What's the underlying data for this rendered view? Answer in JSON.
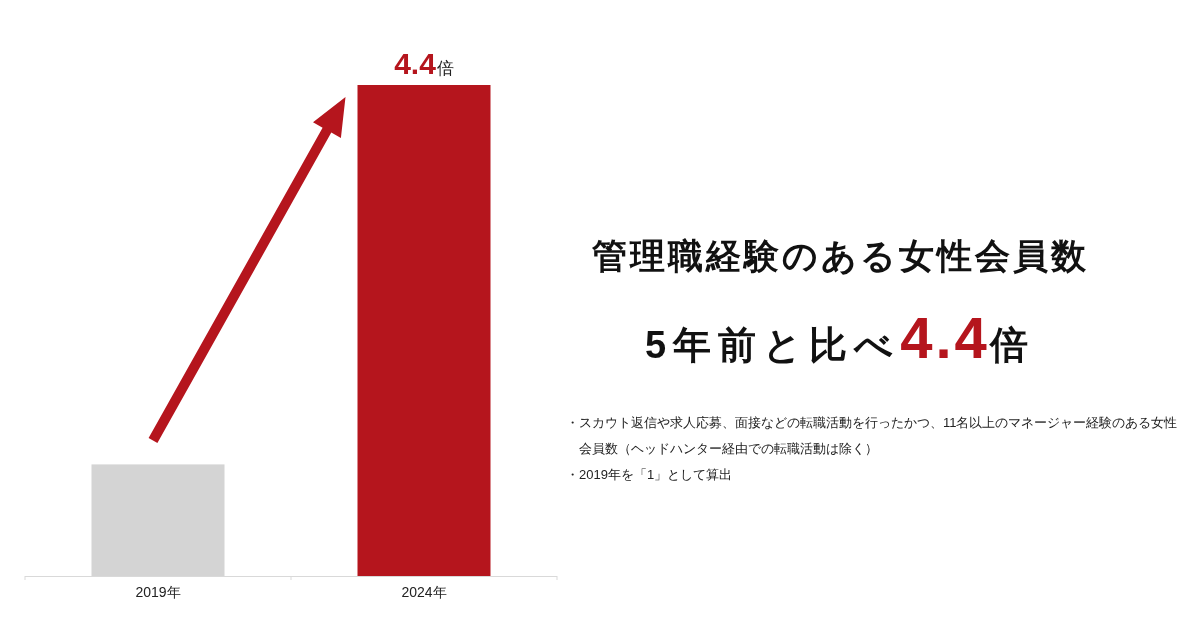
{
  "chart_data": {
    "type": "bar",
    "title": "管理職経験のある女性会員数",
    "subtitle": "5年前と比べ**4.4**倍",
    "categories": [
      "2019年",
      "2024年"
    ],
    "values": [
      1,
      4.4
    ],
    "colors": [
      "#d4d4d4",
      "#b5151d"
    ],
    "value_labels": [
      null,
      "4.4倍"
    ],
    "annotations": [
      "・スカウト返信や求人応募、面接などの転職活動を行ったかつ、11名以上のマネージャー経験のある女性会員数（ヘッドハンター経由での転職活動は除く）",
      "・2019年を「1」として算出"
    ]
  }
}
